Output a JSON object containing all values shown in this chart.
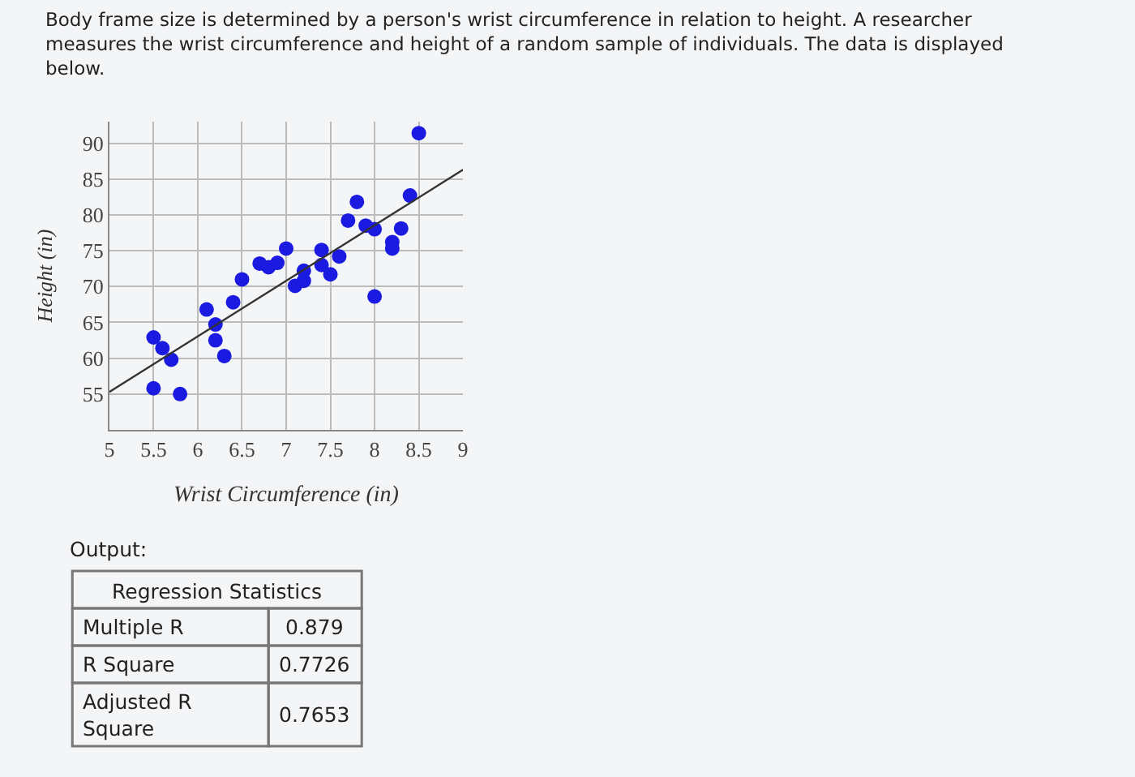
{
  "chart_data": {
    "type": "scatter",
    "title": "Body frame size is determined by a person's wrist circumference in relation to height. A researcher measures the wrist circumference and height of a random sample of individuals. The data is displayed below.",
    "xlabel": "Wrist Circumference (in)",
    "ylabel": "Height (in)",
    "series": [
      {
        "color": "#1a1ae0",
        "x": [
          5.5,
          5.6,
          5.7,
          5.5,
          5.8,
          6.1,
          6.2,
          6.2,
          6.3,
          6.4,
          6.5,
          6.7,
          6.8,
          6.9,
          7.0,
          7.1,
          7.2,
          7.2,
          7.4,
          7.4,
          7.5,
          7.6,
          7.7,
          7.8,
          7.9,
          8.0,
          8.0,
          8.2,
          8.2,
          8.3,
          8.4,
          8.5
        ],
        "values": [
          62.9,
          61.4,
          59.8,
          55.8,
          55,
          66.8,
          64.7,
          62.5,
          60.3,
          67.8,
          71,
          73.2,
          72.7,
          73.3,
          75.3,
          70.1,
          70.8,
          72.2,
          75.1,
          73,
          71.7,
          74.2,
          79.2,
          81.8,
          78.5,
          78,
          68.6,
          76.2,
          75.3,
          78.1,
          82.7,
          91.4
        ]
      },
      {
        "type": "line",
        "marker": "none",
        "color": "#333333",
        "x": [
          5,
          9
        ],
        "values": [
          55.3,
          86.3
        ]
      }
    ],
    "xlim": [
      5,
      9
    ],
    "ylim": [
      50,
      93
    ],
    "xticks": [
      5,
      5.5,
      6,
      6.5,
      7,
      7.5,
      8,
      8.5,
      9
    ],
    "yticks": [
      55,
      60,
      65,
      70,
      75,
      80,
      85,
      90
    ],
    "grid": true,
    "marker": "circle",
    "annotations": [
      "Output:",
      "Regression Statistics",
      "Multiple R",
      "0.879",
      "R Square",
      "0.7726",
      "Adjusted R Square",
      "0.7653"
    ]
  }
}
